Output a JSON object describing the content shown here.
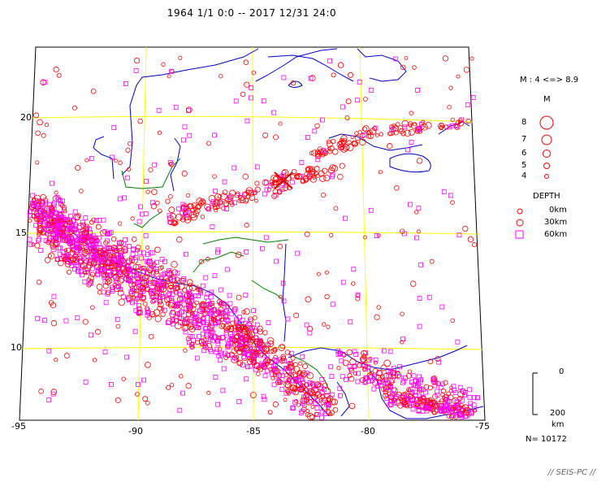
{
  "header": {
    "title": "1964 1/1 0:0 -- 2017 12/31 24:0"
  },
  "axes": {
    "x_ticks": [
      "-95",
      "-90",
      "-85",
      "-80",
      "-75"
    ],
    "y_ticks": [
      "20",
      "15",
      "10"
    ]
  },
  "legend": {
    "magnitude_range": "M : 4 <=> 8.9",
    "magnitude_title": "M",
    "magnitudes": [
      "8",
      "7",
      "6",
      "5",
      "4"
    ],
    "depth_title": "DEPTH",
    "depths": [
      "0km",
      "30km",
      "60km"
    ],
    "depth_scale_top": "0",
    "depth_scale_bottom": "200",
    "depth_scale_unit": "km",
    "count": "N= 10172"
  },
  "credit": "// SEIS-PC //",
  "colors": {
    "shallow": "#ff0000",
    "intermediate": "#ff00ff",
    "coast": "#0000cc",
    "border": "#008000",
    "grid": "#ffff00",
    "mainshock": "#cc0000"
  },
  "icons": {
    "mainshock": "x-mark-icon"
  }
}
